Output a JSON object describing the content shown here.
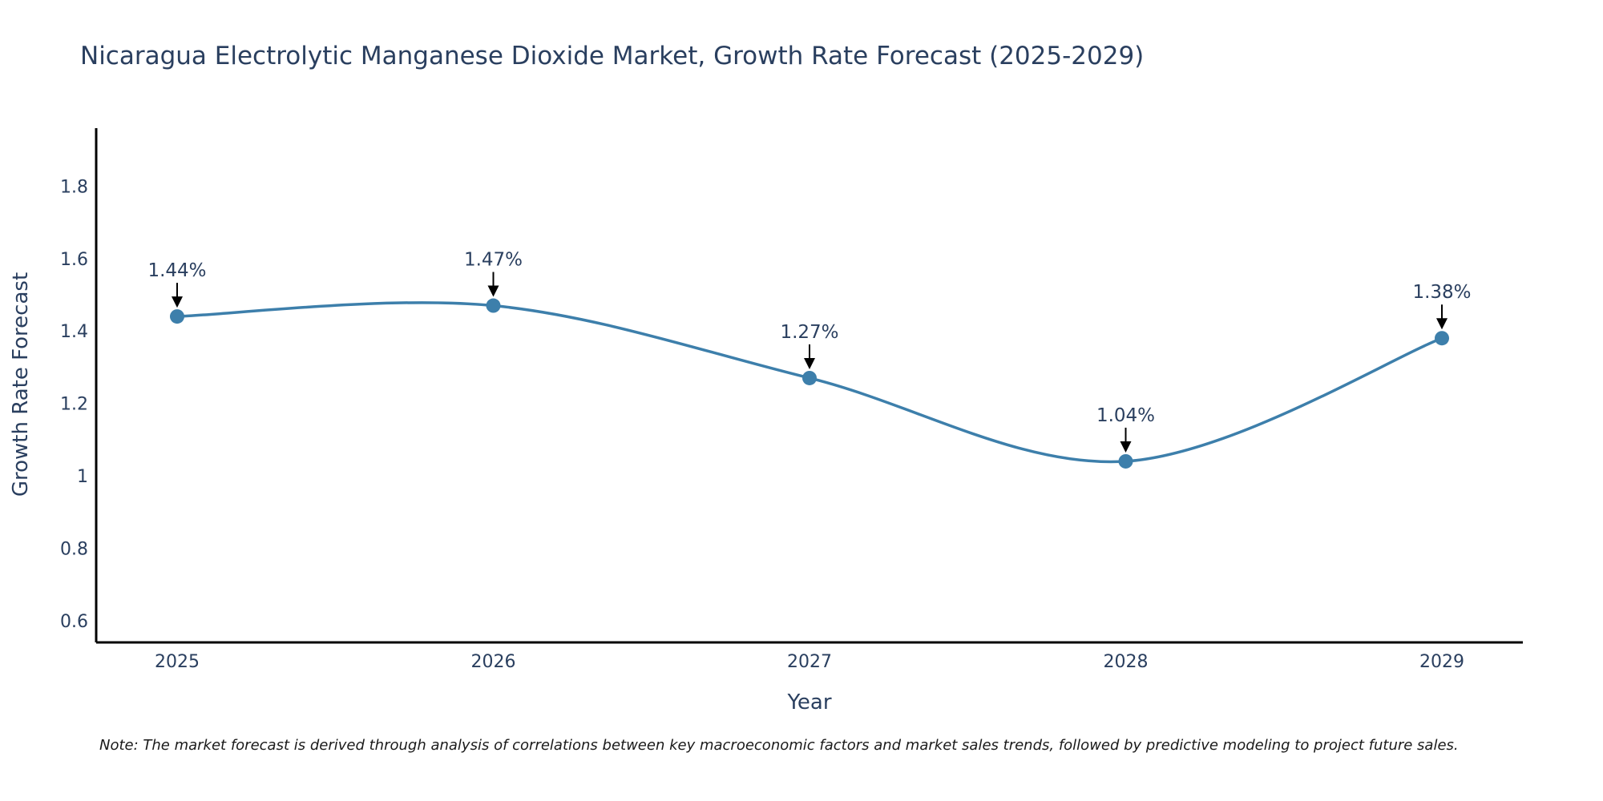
{
  "chart_data": {
    "type": "line",
    "title": "Nicaragua Electrolytic Manganese Dioxide Market, Growth Rate Forecast (2025-2029)",
    "xlabel": "Year",
    "ylabel": "Growth Rate Forecast",
    "categories": [
      "2025",
      "2026",
      "2027",
      "2028",
      "2029"
    ],
    "values": [
      1.44,
      1.47,
      1.27,
      1.04,
      1.38
    ],
    "data_labels": [
      "1.44%",
      "1.47%",
      "1.27%",
      "1.04%",
      "1.38%"
    ],
    "ylim": [
      0.54,
      1.96
    ],
    "yticks": [
      0.6,
      0.8,
      1.0,
      1.2,
      1.4,
      1.6,
      1.8
    ],
    "ytick_labels": [
      "0.6",
      "0.8",
      "1",
      "1.2",
      "1.4",
      "1.6",
      "1.8"
    ],
    "grid": false,
    "line_color": "#3d7fab",
    "marker_color": "#3d7fab",
    "arrow_color": "#000000"
  },
  "note": "Note: The market forecast is derived through analysis of correlations between key macroeconomic factors and market sales trends, followed by predictive modeling to project future sales."
}
